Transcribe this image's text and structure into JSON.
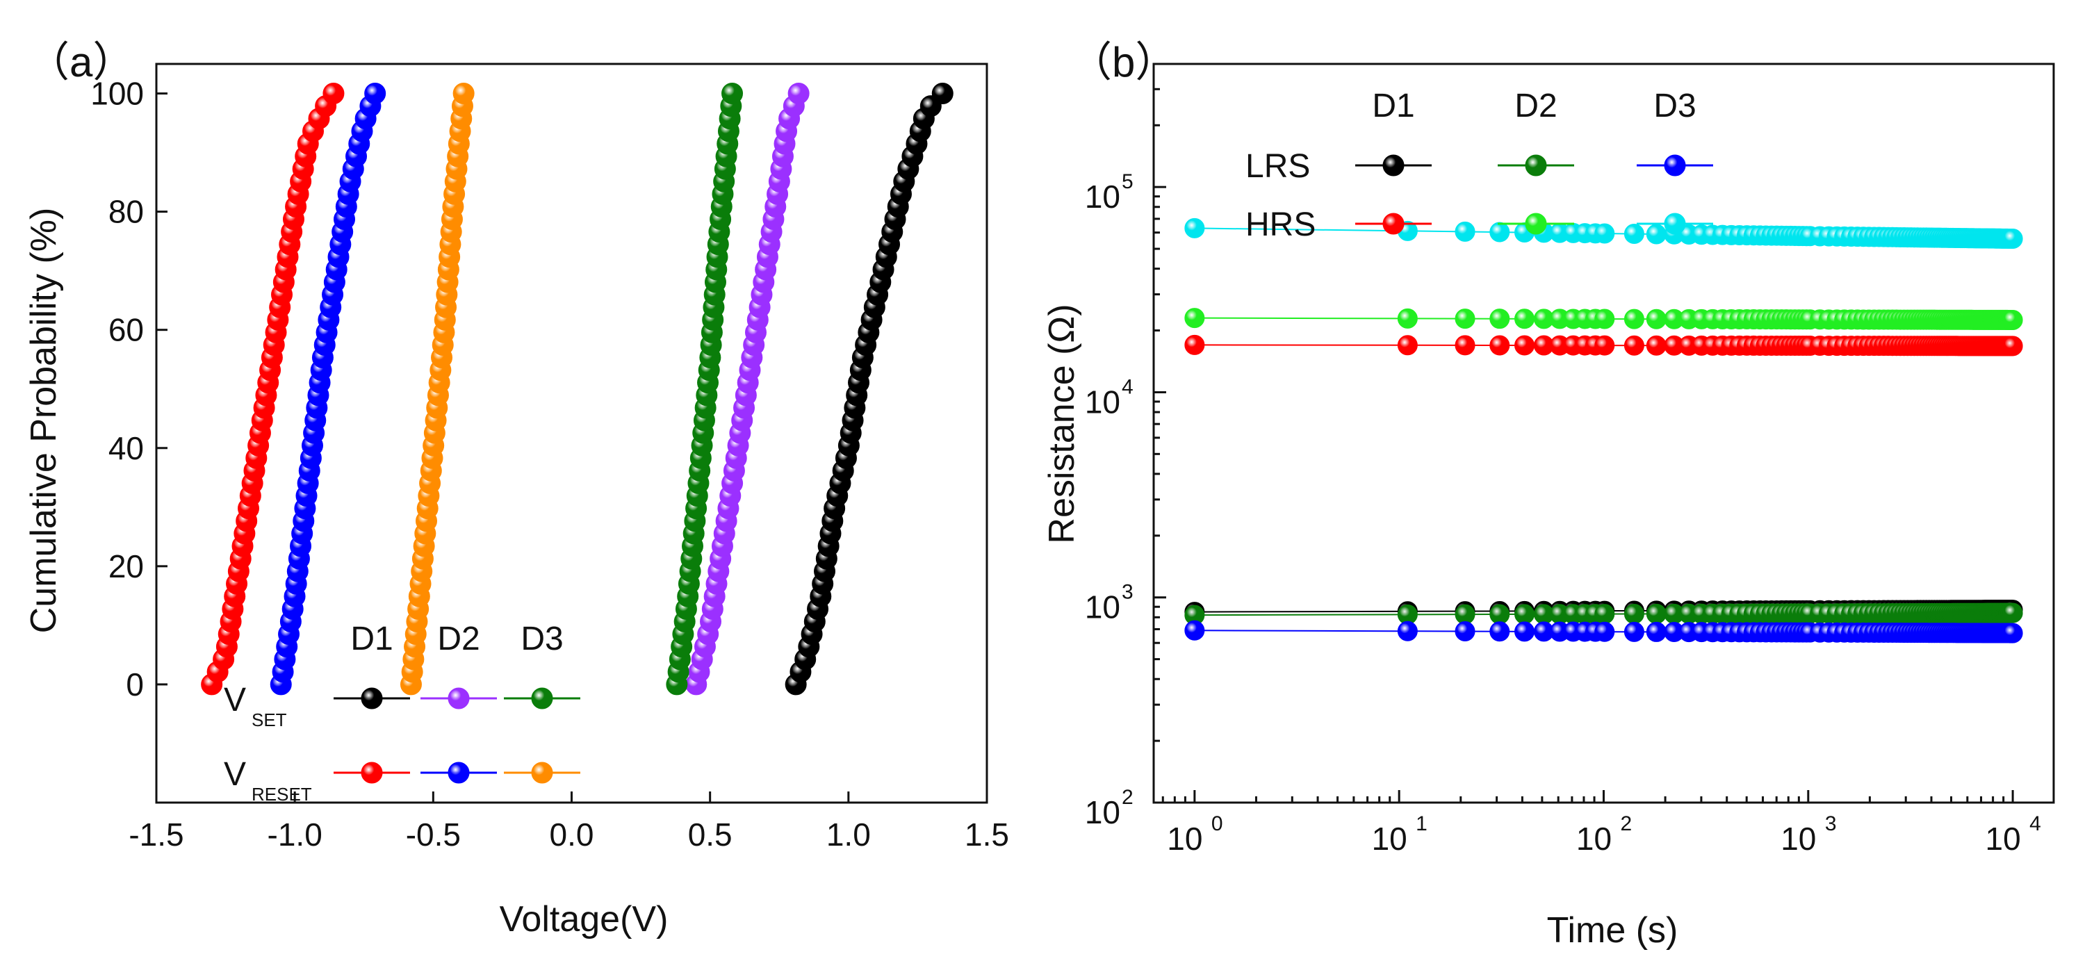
{
  "chart_data": [
    {
      "type": "scatter",
      "panel_label": "（a）",
      "xlabel": "Voltage(V)",
      "ylabel": "Cumulative Probability (%)",
      "xlim": [
        -1.5,
        1.5
      ],
      "ylim": [
        -20,
        105
      ],
      "xticks": [
        -1.5,
        -1.0,
        -0.5,
        0.0,
        0.5,
        1.0,
        1.5
      ],
      "xtick_labels": [
        "-1.5",
        "-1.0",
        "-0.5",
        "0.0",
        "0.5",
        "1.0",
        "1.5"
      ],
      "yticks": [
        0,
        20,
        40,
        60,
        80,
        100
      ],
      "ytick_labels": [
        "0",
        "20",
        "40",
        "60",
        "80",
        "100"
      ],
      "legend": {
        "columns": [
          "D1",
          "D2",
          "D3"
        ],
        "rows": [
          {
            "label": "V",
            "sub": "SET",
            "colors": [
              "#000000",
              "#9b30ff",
              "#0a7d0a"
            ]
          },
          {
            "label": "V",
            "sub": "RESET",
            "colors": [
              "#ff0000",
              "#0000ff",
              "#ff8c00"
            ]
          }
        ]
      },
      "series": [
        {
          "name": "V_SET D1",
          "color": "#000000",
          "cdf_points": [
            [
              0.81,
              0
            ],
            [
              0.85,
              5
            ],
            [
              0.9,
              15
            ],
            [
              0.95,
              30
            ],
            [
              1.0,
              40
            ],
            [
              1.05,
              55
            ],
            [
              1.1,
              65
            ],
            [
              1.15,
              75
            ],
            [
              1.2,
              85
            ],
            [
              1.25,
              92
            ],
            [
              1.28,
              97
            ],
            [
              1.34,
              100
            ]
          ]
        },
        {
          "name": "V_SET D2",
          "color": "#9b30ff",
          "cdf_points": [
            [
              0.45,
              0
            ],
            [
              0.5,
              10
            ],
            [
              0.55,
              25
            ],
            [
              0.6,
              40
            ],
            [
              0.65,
              55
            ],
            [
              0.7,
              70
            ],
            [
              0.75,
              85
            ],
            [
              0.78,
              95
            ],
            [
              0.82,
              100
            ]
          ]
        },
        {
          "name": "V_SET D3",
          "color": "#0a7d0a",
          "cdf_points": [
            [
              0.38,
              0
            ],
            [
              0.42,
              15
            ],
            [
              0.46,
              35
            ],
            [
              0.5,
              55
            ],
            [
              0.53,
              75
            ],
            [
              0.56,
              90
            ],
            [
              0.58,
              100
            ]
          ]
        },
        {
          "name": "V_RESET D1",
          "color": "#ff0000",
          "cdf_points": [
            [
              -1.3,
              0
            ],
            [
              -1.25,
              5
            ],
            [
              -1.2,
              20
            ],
            [
              -1.15,
              35
            ],
            [
              -1.1,
              50
            ],
            [
              -1.05,
              65
            ],
            [
              -1.0,
              80
            ],
            [
              -0.95,
              92
            ],
            [
              -0.9,
              97
            ],
            [
              -0.86,
              100
            ]
          ]
        },
        {
          "name": "V_RESET D2",
          "color": "#0000ff",
          "cdf_points": [
            [
              -1.05,
              0
            ],
            [
              -1.0,
              15
            ],
            [
              -0.95,
              35
            ],
            [
              -0.9,
              55
            ],
            [
              -0.85,
              70
            ],
            [
              -0.8,
              85
            ],
            [
              -0.75,
              95
            ],
            [
              -0.71,
              100
            ]
          ]
        },
        {
          "name": "V_RESET D3",
          "color": "#ff8c00",
          "cdf_points": [
            [
              -0.58,
              0
            ],
            [
              -0.54,
              20
            ],
            [
              -0.5,
              40
            ],
            [
              -0.46,
              60
            ],
            [
              -0.43,
              80
            ],
            [
              -0.4,
              95
            ],
            [
              -0.39,
              100
            ]
          ]
        }
      ]
    },
    {
      "type": "scatter",
      "panel_label": "（b）",
      "xlabel": "Time (s)",
      "ylabel": "Resistance (Ω)",
      "xscale": "log",
      "yscale": "log",
      "xlim_log10": [
        -0.2,
        4.2
      ],
      "ylim_log10": [
        2,
        5.6
      ],
      "xticks_log10": [
        0,
        1,
        2,
        3,
        4
      ],
      "xtick_labels": [
        {
          "base": "10",
          "exp": "0"
        },
        {
          "base": "10",
          "exp": "1"
        },
        {
          "base": "10",
          "exp": "2"
        },
        {
          "base": "10",
          "exp": "3"
        },
        {
          "base": "10",
          "exp": "4"
        }
      ],
      "yticks_log10": [
        2,
        3,
        4,
        5
      ],
      "ytick_labels": [
        {
          "base": "10",
          "exp": "2"
        },
        {
          "base": "10",
          "exp": "3"
        },
        {
          "base": "10",
          "exp": "4"
        },
        {
          "base": "10",
          "exp": "5"
        }
      ],
      "legend": {
        "columns": [
          "D1",
          "D2",
          "D3"
        ],
        "rows": [
          {
            "label": "LRS",
            "colors": [
              "#000000",
              "#0a7d0a",
              "#0000ff"
            ]
          },
          {
            "label": "HRS",
            "colors": [
              "#ff0000",
              "#22ee22",
              "#00e5ee"
            ]
          }
        ]
      },
      "series": [
        {
          "name": "HRS D3",
          "color": "#00e5ee",
          "start_ohm": 63000,
          "end_ohm": 56000
        },
        {
          "name": "HRS D2",
          "color": "#22ee22",
          "start_ohm": 23000,
          "end_ohm": 22500
        },
        {
          "name": "HRS D1",
          "color": "#ff0000",
          "start_ohm": 17000,
          "end_ohm": 16800
        },
        {
          "name": "LRS D1",
          "color": "#000000",
          "start_ohm": 850,
          "end_ohm": 870
        },
        {
          "name": "LRS D2",
          "color": "#0a7d0a",
          "start_ohm": 820,
          "end_ohm": 840
        },
        {
          "name": "LRS D3",
          "color": "#0000ff",
          "start_ohm": 690,
          "end_ohm": 670
        }
      ],
      "time_points_s": [
        1,
        11,
        21,
        31,
        41,
        51,
        61,
        71,
        81,
        91,
        101,
        111,
        121,
        131,
        141,
        151,
        161,
        171,
        181,
        191,
        201
      ]
    }
  ]
}
